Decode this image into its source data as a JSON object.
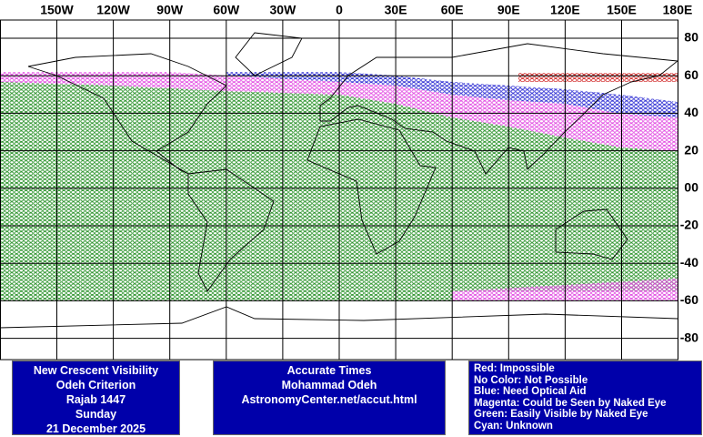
{
  "map": {
    "lon_labels": [
      "150W",
      "120W",
      "90W",
      "60W",
      "30W",
      "0",
      "30E",
      "60E",
      "90E",
      "120E",
      "150E",
      "180E"
    ],
    "lat_labels": [
      "80",
      "60",
      "40",
      "20",
      "00",
      "-20",
      "-40",
      "-60",
      "-80"
    ]
  },
  "info_event": [
    "New Crescent Visibility",
    "Odeh Criterion",
    "Rajab 1447",
    "Sunday",
    "21 December 2025"
  ],
  "info_credits": [
    "Accurate Times",
    "Mohammad Odeh",
    "AstronomyCenter.net/accut.html"
  ],
  "legend": [
    "Red: Impossible",
    "No Color: Not Possible",
    "Blue: Need Optical Aid",
    "Magenta: Could be Seen by Naked Eye",
    "Green: Easily Visible by Naked Eye",
    "Cyan: Unknown"
  ]
}
